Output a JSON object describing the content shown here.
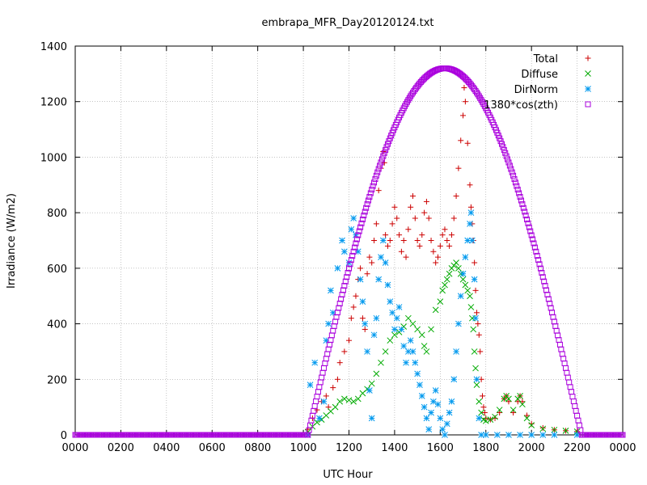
{
  "chart_data": {
    "type": "scatter",
    "title": "embrapa_MFR_Day20120124.txt",
    "xlabel": "UTC Hour",
    "ylabel": "Irradiance (W/m2)",
    "xlim": [
      0,
      24
    ],
    "ylim": [
      0,
      1400
    ],
    "x_ticks": [
      0,
      2,
      4,
      6,
      8,
      10,
      12,
      14,
      16,
      18,
      20,
      22,
      24
    ],
    "x_tick_labels": [
      "0000",
      "0200",
      "0400",
      "0600",
      "0800",
      "1000",
      "1200",
      "1400",
      "1600",
      "1800",
      "2000",
      "2200",
      "0000"
    ],
    "y_ticks": [
      0,
      200,
      400,
      600,
      800,
      1000,
      1200,
      1400
    ],
    "grid": true,
    "legend_position": "top-right",
    "series": [
      {
        "name": "Total",
        "color": "#cc0000",
        "marker": "plus",
        "points": [
          [
            10.2,
            20
          ],
          [
            10.4,
            60
          ],
          [
            10.6,
            90
          ],
          [
            10.8,
            120
          ],
          [
            11.0,
            140
          ],
          [
            11.1,
            100
          ],
          [
            11.3,
            170
          ],
          [
            11.5,
            200
          ],
          [
            11.6,
            260
          ],
          [
            11.8,
            300
          ],
          [
            12.0,
            340
          ],
          [
            12.1,
            420
          ],
          [
            12.2,
            460
          ],
          [
            12.3,
            500
          ],
          [
            12.4,
            560
          ],
          [
            12.5,
            600
          ],
          [
            12.6,
            420
          ],
          [
            12.7,
            380
          ],
          [
            12.8,
            580
          ],
          [
            12.9,
            640
          ],
          [
            13.0,
            620
          ],
          [
            13.1,
            700
          ],
          [
            13.2,
            760
          ],
          [
            13.3,
            880
          ],
          [
            13.4,
            960
          ],
          [
            13.5,
            1020
          ],
          [
            13.55,
            980
          ],
          [
            13.6,
            720
          ],
          [
            13.7,
            680
          ],
          [
            13.8,
            700
          ],
          [
            13.9,
            760
          ],
          [
            14.0,
            820
          ],
          [
            14.1,
            780
          ],
          [
            14.2,
            720
          ],
          [
            14.3,
            660
          ],
          [
            14.4,
            700
          ],
          [
            14.5,
            640
          ],
          [
            14.6,
            740
          ],
          [
            14.7,
            820
          ],
          [
            14.8,
            860
          ],
          [
            14.9,
            780
          ],
          [
            15.0,
            700
          ],
          [
            15.1,
            680
          ],
          [
            15.2,
            720
          ],
          [
            15.3,
            800
          ],
          [
            15.4,
            840
          ],
          [
            15.5,
            780
          ],
          [
            15.6,
            700
          ],
          [
            15.7,
            660
          ],
          [
            15.8,
            620
          ],
          [
            15.9,
            640
          ],
          [
            16.0,
            680
          ],
          [
            16.1,
            720
          ],
          [
            16.2,
            740
          ],
          [
            16.3,
            700
          ],
          [
            16.4,
            680
          ],
          [
            16.5,
            720
          ],
          [
            16.6,
            780
          ],
          [
            16.7,
            860
          ],
          [
            16.8,
            960
          ],
          [
            16.9,
            1060
          ],
          [
            17.0,
            1150
          ],
          [
            17.05,
            1250
          ],
          [
            17.1,
            1200
          ],
          [
            17.2,
            1050
          ],
          [
            17.3,
            900
          ],
          [
            17.35,
            820
          ],
          [
            17.4,
            760
          ],
          [
            17.45,
            700
          ],
          [
            17.5,
            620
          ],
          [
            17.55,
            520
          ],
          [
            17.6,
            440
          ],
          [
            17.65,
            400
          ],
          [
            17.7,
            360
          ],
          [
            17.75,
            300
          ],
          [
            17.8,
            200
          ],
          [
            17.85,
            140
          ],
          [
            17.9,
            100
          ],
          [
            17.95,
            80
          ],
          [
            18.0,
            60
          ],
          [
            18.2,
            55
          ],
          [
            18.4,
            60
          ],
          [
            18.6,
            80
          ],
          [
            18.8,
            130
          ],
          [
            18.9,
            140
          ],
          [
            19.0,
            120
          ],
          [
            19.2,
            80
          ],
          [
            19.4,
            120
          ],
          [
            19.5,
            140
          ],
          [
            19.6,
            120
          ],
          [
            19.8,
            70
          ],
          [
            20.0,
            40
          ],
          [
            20.5,
            25
          ],
          [
            21.0,
            18
          ],
          [
            21.5,
            15
          ],
          [
            22.0,
            12
          ]
        ]
      },
      {
        "name": "Diffuse",
        "color": "#00aa00",
        "marker": "cross",
        "points": [
          [
            10.2,
            10
          ],
          [
            10.4,
            30
          ],
          [
            10.6,
            45
          ],
          [
            10.8,
            55
          ],
          [
            11.0,
            70
          ],
          [
            11.2,
            85
          ],
          [
            11.4,
            100
          ],
          [
            11.6,
            120
          ],
          [
            11.8,
            130
          ],
          [
            12.0,
            125
          ],
          [
            12.2,
            120
          ],
          [
            12.4,
            130
          ],
          [
            12.6,
            150
          ],
          [
            12.8,
            165
          ],
          [
            13.0,
            185
          ],
          [
            13.2,
            220
          ],
          [
            13.4,
            260
          ],
          [
            13.6,
            300
          ],
          [
            13.8,
            340
          ],
          [
            14.0,
            360
          ],
          [
            14.2,
            370
          ],
          [
            14.4,
            390
          ],
          [
            14.6,
            420
          ],
          [
            14.8,
            400
          ],
          [
            15.0,
            380
          ],
          [
            15.2,
            360
          ],
          [
            15.3,
            320
          ],
          [
            15.4,
            300
          ],
          [
            15.6,
            380
          ],
          [
            15.8,
            450
          ],
          [
            16.0,
            480
          ],
          [
            16.1,
            520
          ],
          [
            16.2,
            540
          ],
          [
            16.3,
            560
          ],
          [
            16.4,
            580
          ],
          [
            16.5,
            600
          ],
          [
            16.6,
            610
          ],
          [
            16.7,
            620
          ],
          [
            16.8,
            600
          ],
          [
            16.9,
            580
          ],
          [
            17.0,
            560
          ],
          [
            17.1,
            540
          ],
          [
            17.2,
            520
          ],
          [
            17.3,
            500
          ],
          [
            17.35,
            460
          ],
          [
            17.4,
            420
          ],
          [
            17.45,
            380
          ],
          [
            17.5,
            300
          ],
          [
            17.55,
            240
          ],
          [
            17.6,
            180
          ],
          [
            17.7,
            120
          ],
          [
            17.8,
            80
          ],
          [
            17.9,
            55
          ],
          [
            18.0,
            50
          ],
          [
            18.2,
            55
          ],
          [
            18.4,
            65
          ],
          [
            18.6,
            90
          ],
          [
            18.8,
            130
          ],
          [
            18.9,
            140
          ],
          [
            19.0,
            130
          ],
          [
            19.2,
            90
          ],
          [
            19.4,
            130
          ],
          [
            19.5,
            140
          ],
          [
            19.6,
            110
          ],
          [
            19.8,
            60
          ],
          [
            20.0,
            35
          ],
          [
            20.5,
            22
          ],
          [
            21.0,
            18
          ],
          [
            21.5,
            15
          ],
          [
            22.0,
            12
          ]
        ]
      },
      {
        "name": "DirNorm",
        "color": "#0099ee",
        "marker": "star",
        "points": [
          [
            10.2,
            0
          ],
          [
            10.3,
            180
          ],
          [
            10.5,
            260
          ],
          [
            10.7,
            60
          ],
          [
            10.9,
            120
          ],
          [
            11.0,
            340
          ],
          [
            11.1,
            400
          ],
          [
            11.2,
            520
          ],
          [
            11.3,
            440
          ],
          [
            11.5,
            600
          ],
          [
            11.7,
            700
          ],
          [
            11.8,
            660
          ],
          [
            12.0,
            620
          ],
          [
            12.1,
            740
          ],
          [
            12.2,
            780
          ],
          [
            12.3,
            720
          ],
          [
            12.4,
            660
          ],
          [
            12.5,
            560
          ],
          [
            12.6,
            480
          ],
          [
            12.7,
            400
          ],
          [
            12.8,
            300
          ],
          [
            12.9,
            160
          ],
          [
            13.0,
            60
          ],
          [
            13.1,
            360
          ],
          [
            13.2,
            420
          ],
          [
            13.3,
            560
          ],
          [
            13.4,
            640
          ],
          [
            13.5,
            700
          ],
          [
            13.6,
            620
          ],
          [
            13.7,
            540
          ],
          [
            13.8,
            480
          ],
          [
            13.9,
            440
          ],
          [
            14.0,
            380
          ],
          [
            14.1,
            420
          ],
          [
            14.2,
            460
          ],
          [
            14.3,
            380
          ],
          [
            14.4,
            320
          ],
          [
            14.5,
            260
          ],
          [
            14.6,
            300
          ],
          [
            14.7,
            340
          ],
          [
            14.8,
            300
          ],
          [
            14.9,
            260
          ],
          [
            15.0,
            220
          ],
          [
            15.1,
            180
          ],
          [
            15.2,
            140
          ],
          [
            15.3,
            100
          ],
          [
            15.4,
            60
          ],
          [
            15.5,
            20
          ],
          [
            15.6,
            80
          ],
          [
            15.7,
            120
          ],
          [
            15.8,
            160
          ],
          [
            15.9,
            110
          ],
          [
            16.0,
            60
          ],
          [
            16.1,
            20
          ],
          [
            16.2,
            0
          ],
          [
            16.3,
            40
          ],
          [
            16.4,
            80
          ],
          [
            16.5,
            120
          ],
          [
            16.6,
            200
          ],
          [
            16.7,
            300
          ],
          [
            16.8,
            400
          ],
          [
            16.9,
            500
          ],
          [
            17.0,
            580
          ],
          [
            17.1,
            640
          ],
          [
            17.2,
            700
          ],
          [
            17.3,
            760
          ],
          [
            17.35,
            800
          ],
          [
            17.4,
            700
          ],
          [
            17.5,
            560
          ],
          [
            17.55,
            420
          ],
          [
            17.6,
            200
          ],
          [
            17.7,
            60
          ],
          [
            17.8,
            0
          ],
          [
            18.0,
            0
          ],
          [
            18.5,
            0
          ],
          [
            19.0,
            0
          ],
          [
            19.5,
            0
          ],
          [
            20.0,
            0
          ],
          [
            20.5,
            0
          ],
          [
            21.0,
            0
          ],
          [
            22.0,
            0
          ]
        ]
      },
      {
        "name": "1380*cos(zth)",
        "color": "#aa00dd",
        "marker": "square",
        "function": {
          "peak": 1320,
          "peak_hour": 16.2,
          "sunrise": 10.2,
          "sunset": 22.2
        }
      }
    ]
  }
}
